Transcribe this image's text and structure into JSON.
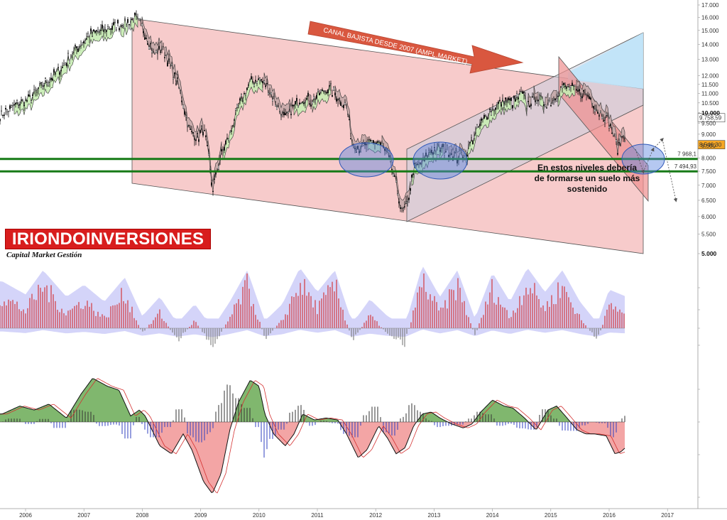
{
  "chart_data": [
    {
      "type": "candlestick",
      "title": "",
      "yscale": "log",
      "ylim": [
        4700,
        17000
      ],
      "xlim": [
        2005.6,
        2017.5
      ],
      "price_levels": [
        "17.000",
        "16.000",
        "15.000",
        "14.000",
        "13.000",
        "12.000",
        "11.500",
        "11.000",
        "10.500",
        "10.000",
        "9.500",
        "9.000",
        "8.500",
        "8.000",
        "7.500",
        "7.000",
        "6.500",
        "6.000",
        "5.500",
        "5.000"
      ],
      "key_levels": [
        {
          "value": 7968.1,
          "label": "7 968,1"
        },
        {
          "value": 7494.93,
          "label": "7 494,93"
        }
      ],
      "price_tags": [
        {
          "value": 9758.59,
          "label": "9.758,59"
        },
        {
          "value": 8546.3,
          "label": "8.546,30"
        }
      ],
      "anchors": [
        [
          2005.6,
          9900
        ],
        [
          2005.85,
          10400
        ],
        [
          2006.1,
          10800
        ],
        [
          2006.35,
          11600
        ],
        [
          2006.6,
          12400
        ],
        [
          2006.85,
          13600
        ],
        [
          2007.1,
          14700
        ],
        [
          2007.35,
          15000
        ],
        [
          2007.55,
          15400
        ],
        [
          2007.75,
          15600
        ],
        [
          2007.87,
          16000
        ],
        [
          2008.05,
          14800
        ],
        [
          2008.2,
          13300
        ],
        [
          2008.35,
          13800
        ],
        [
          2008.5,
          12400
        ],
        [
          2008.65,
          11100
        ],
        [
          2008.8,
          9200
        ],
        [
          2008.95,
          8800
        ],
        [
          2009.05,
          9300
        ],
        [
          2009.15,
          7800
        ],
        [
          2009.2,
          6800
        ],
        [
          2009.35,
          8100
        ],
        [
          2009.5,
          9000
        ],
        [
          2009.65,
          10300
        ],
        [
          2009.85,
          11600
        ],
        [
          2010.0,
          11800
        ],
        [
          2010.15,
          11300
        ],
        [
          2010.3,
          10400
        ],
        [
          2010.45,
          9700
        ],
        [
          2010.6,
          10300
        ],
        [
          2010.75,
          10800
        ],
        [
          2010.9,
          10600
        ],
        [
          2011.05,
          11000
        ],
        [
          2011.2,
          11300
        ],
        [
          2011.4,
          10600
        ],
        [
          2011.5,
          10300
        ],
        [
          2011.6,
          8600
        ],
        [
          2011.75,
          8400
        ],
        [
          2011.9,
          8600
        ],
        [
          2012.05,
          8700
        ],
        [
          2012.2,
          8100
        ],
        [
          2012.35,
          7000
        ],
        [
          2012.45,
          6100
        ],
        [
          2012.55,
          6400
        ],
        [
          2012.65,
          7600
        ],
        [
          2012.8,
          7800
        ],
        [
          2012.95,
          8300
        ],
        [
          2013.1,
          8400
        ],
        [
          2013.25,
          8300
        ],
        [
          2013.4,
          8000
        ],
        [
          2013.55,
          8200
        ],
        [
          2013.7,
          9000
        ],
        [
          2013.9,
          9900
        ],
        [
          2014.05,
          10300
        ],
        [
          2014.2,
          10600
        ],
        [
          2014.35,
          10500
        ],
        [
          2014.5,
          11000
        ],
        [
          2014.6,
          10400
        ],
        [
          2014.75,
          10800
        ],
        [
          2014.9,
          10500
        ],
        [
          2015.05,
          10700
        ],
        [
          2015.2,
          11400
        ],
        [
          2015.35,
          11300
        ],
        [
          2015.5,
          11000
        ],
        [
          2015.65,
          10900
        ],
        [
          2015.8,
          10100
        ],
        [
          2015.95,
          9800
        ],
        [
          2016.05,
          9200
        ],
        [
          2016.15,
          8300
        ],
        [
          2016.25,
          9000
        ],
        [
          2016.35,
          8546
        ]
      ],
      "annotations": [
        "CANAL BAJISTA DESDE 2007 (AMPL.MARKET)",
        "En estos niveles debería de formarse un suelo más sostenido"
      ]
    },
    {
      "type": "bar",
      "name": "",
      "ylim": [
        -1.2,
        1.2
      ],
      "anchors": [
        [
          2005.6,
          0.62
        ],
        [
          2006.0,
          0.35
        ],
        [
          2006.3,
          0.85
        ],
        [
          2006.7,
          0.3
        ],
        [
          2007.0,
          0.55
        ],
        [
          2007.35,
          0.2
        ],
        [
          2007.7,
          0.7
        ],
        [
          2008.0,
          -0.1
        ],
        [
          2008.3,
          0.3
        ],
        [
          2008.6,
          -0.25
        ],
        [
          2008.9,
          0.15
        ],
        [
          2009.2,
          -0.35
        ],
        [
          2009.5,
          0.2
        ],
        [
          2009.8,
          0.85
        ],
        [
          2010.1,
          -0.2
        ],
        [
          2010.4,
          0.15
        ],
        [
          2010.7,
          0.9
        ],
        [
          2011.0,
          0.4
        ],
        [
          2011.3,
          0.85
        ],
        [
          2011.6,
          -0.25
        ],
        [
          2011.9,
          0.25
        ],
        [
          2012.2,
          -0.1
        ],
        [
          2012.5,
          -0.3
        ],
        [
          2012.8,
          0.95
        ],
        [
          2013.1,
          0.3
        ],
        [
          2013.4,
          0.85
        ],
        [
          2013.7,
          -0.15
        ],
        [
          2014.0,
          0.8
        ],
        [
          2014.3,
          0.2
        ],
        [
          2014.6,
          0.9
        ],
        [
          2014.9,
          0.4
        ],
        [
          2015.2,
          0.85
        ],
        [
          2015.5,
          0.2
        ],
        [
          2015.8,
          -0.25
        ],
        [
          2016.0,
          0.45
        ],
        [
          2016.3,
          0.3
        ]
      ],
      "colors": {
        "bar": "#d2282b",
        "band": "#b8b8f5"
      }
    },
    {
      "type": "area",
      "name": "",
      "ylim": [
        -4,
        2.6
      ],
      "anchors": [
        [
          2005.6,
          0.4
        ],
        [
          2005.9,
          0.8
        ],
        [
          2006.15,
          0.6
        ],
        [
          2006.4,
          0.9
        ],
        [
          2006.7,
          0.2
        ],
        [
          2006.95,
          1.4
        ],
        [
          2007.15,
          2.2
        ],
        [
          2007.4,
          1.8
        ],
        [
          2007.6,
          1.6
        ],
        [
          2007.8,
          0.3
        ],
        [
          2007.95,
          0.6
        ],
        [
          2008.05,
          0.3
        ],
        [
          2008.15,
          -0.3
        ],
        [
          2008.3,
          -1.2
        ],
        [
          2008.5,
          -1.6
        ],
        [
          2008.7,
          -0.6
        ],
        [
          2008.85,
          -1.4
        ],
        [
          2009.05,
          -3.0
        ],
        [
          2009.2,
          -3.6
        ],
        [
          2009.35,
          -2.6
        ],
        [
          2009.5,
          -0.4
        ],
        [
          2009.65,
          1.0
        ],
        [
          2009.85,
          2.1
        ],
        [
          2010.0,
          1.8
        ],
        [
          2010.1,
          0.4
        ],
        [
          2010.25,
          -0.6
        ],
        [
          2010.45,
          -1.2
        ],
        [
          2010.6,
          -0.6
        ],
        [
          2010.75,
          0.4
        ],
        [
          2010.95,
          0.1
        ],
        [
          2011.15,
          0.2
        ],
        [
          2011.35,
          0.1
        ],
        [
          2011.5,
          -0.6
        ],
        [
          2011.7,
          -1.8
        ],
        [
          2011.85,
          -1.4
        ],
        [
          2012.05,
          -0.2
        ],
        [
          2012.2,
          -0.8
        ],
        [
          2012.35,
          -1.6
        ],
        [
          2012.5,
          -1.3
        ],
        [
          2012.65,
          -0.2
        ],
        [
          2012.8,
          0.4
        ],
        [
          2012.95,
          0.5
        ],
        [
          2013.1,
          0.2
        ],
        [
          2013.3,
          -0.1
        ],
        [
          2013.5,
          -0.3
        ],
        [
          2013.65,
          -0.1
        ],
        [
          2013.8,
          0.5
        ],
        [
          2014.0,
          1.1
        ],
        [
          2014.2,
          0.8
        ],
        [
          2014.35,
          0.7
        ],
        [
          2014.55,
          0.2
        ],
        [
          2014.75,
          -0.4
        ],
        [
          2014.95,
          0.6
        ],
        [
          2015.1,
          0.8
        ],
        [
          2015.25,
          0.3
        ],
        [
          2015.45,
          -0.4
        ],
        [
          2015.6,
          -0.6
        ],
        [
          2015.75,
          -0.6
        ],
        [
          2015.95,
          -0.7
        ],
        [
          2016.1,
          -1.6
        ],
        [
          2016.2,
          -1.5
        ],
        [
          2016.35,
          -1.1
        ]
      ],
      "colors": {
        "pos": "#6aaa55",
        "neg": "#f29b9b",
        "line": "#111111",
        "signal": "#d43030"
      }
    }
  ],
  "x_axis": {
    "labels": [
      "2006",
      "2007",
      "2008",
      "2009",
      "2010",
      "2011",
      "2012",
      "2013",
      "2014",
      "2015",
      "2016",
      "2017"
    ]
  },
  "logo": {
    "name": "IRIONDOINVERSIONES",
    "tagline": "Capital Market Gestión"
  },
  "colors": {
    "channel_red": "#f4b9b9",
    "channel_blue": "#bfe3f8",
    "support_green": "#167a16",
    "arrow": "#d9573f",
    "ellipse": "#3f6fd0"
  }
}
